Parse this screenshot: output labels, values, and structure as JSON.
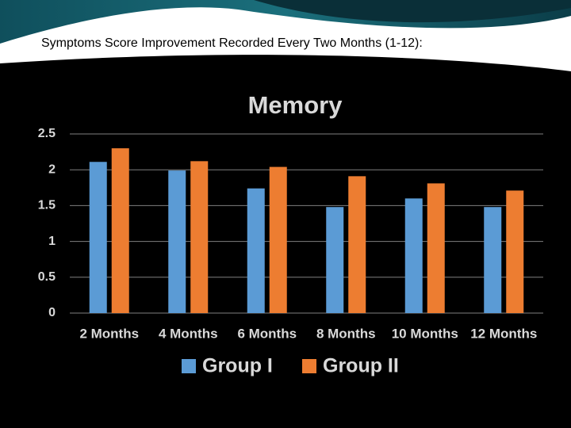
{
  "header": {
    "title": "Symptoms Score Improvement Recorded Every Two Months (1-12):"
  },
  "chart_data": {
    "type": "bar",
    "title": "Memory",
    "categories": [
      "2 Months",
      "4 Months",
      "6 Months",
      "8 Months",
      "10 Months",
      "12 Months"
    ],
    "series": [
      {
        "name": "Group I",
        "color": "#5b9bd5",
        "values": [
          2.11,
          1.99,
          1.74,
          1.48,
          1.6,
          1.48
        ]
      },
      {
        "name": "Group II",
        "color": "#ed7d31",
        "values": [
          2.3,
          2.12,
          2.04,
          1.91,
          1.81,
          1.71
        ]
      }
    ],
    "ylim": [
      0,
      2.5
    ],
    "yticks": [
      0,
      0.5,
      1,
      1.5,
      2,
      2.5
    ],
    "grid": true,
    "legend": "bottom"
  }
}
